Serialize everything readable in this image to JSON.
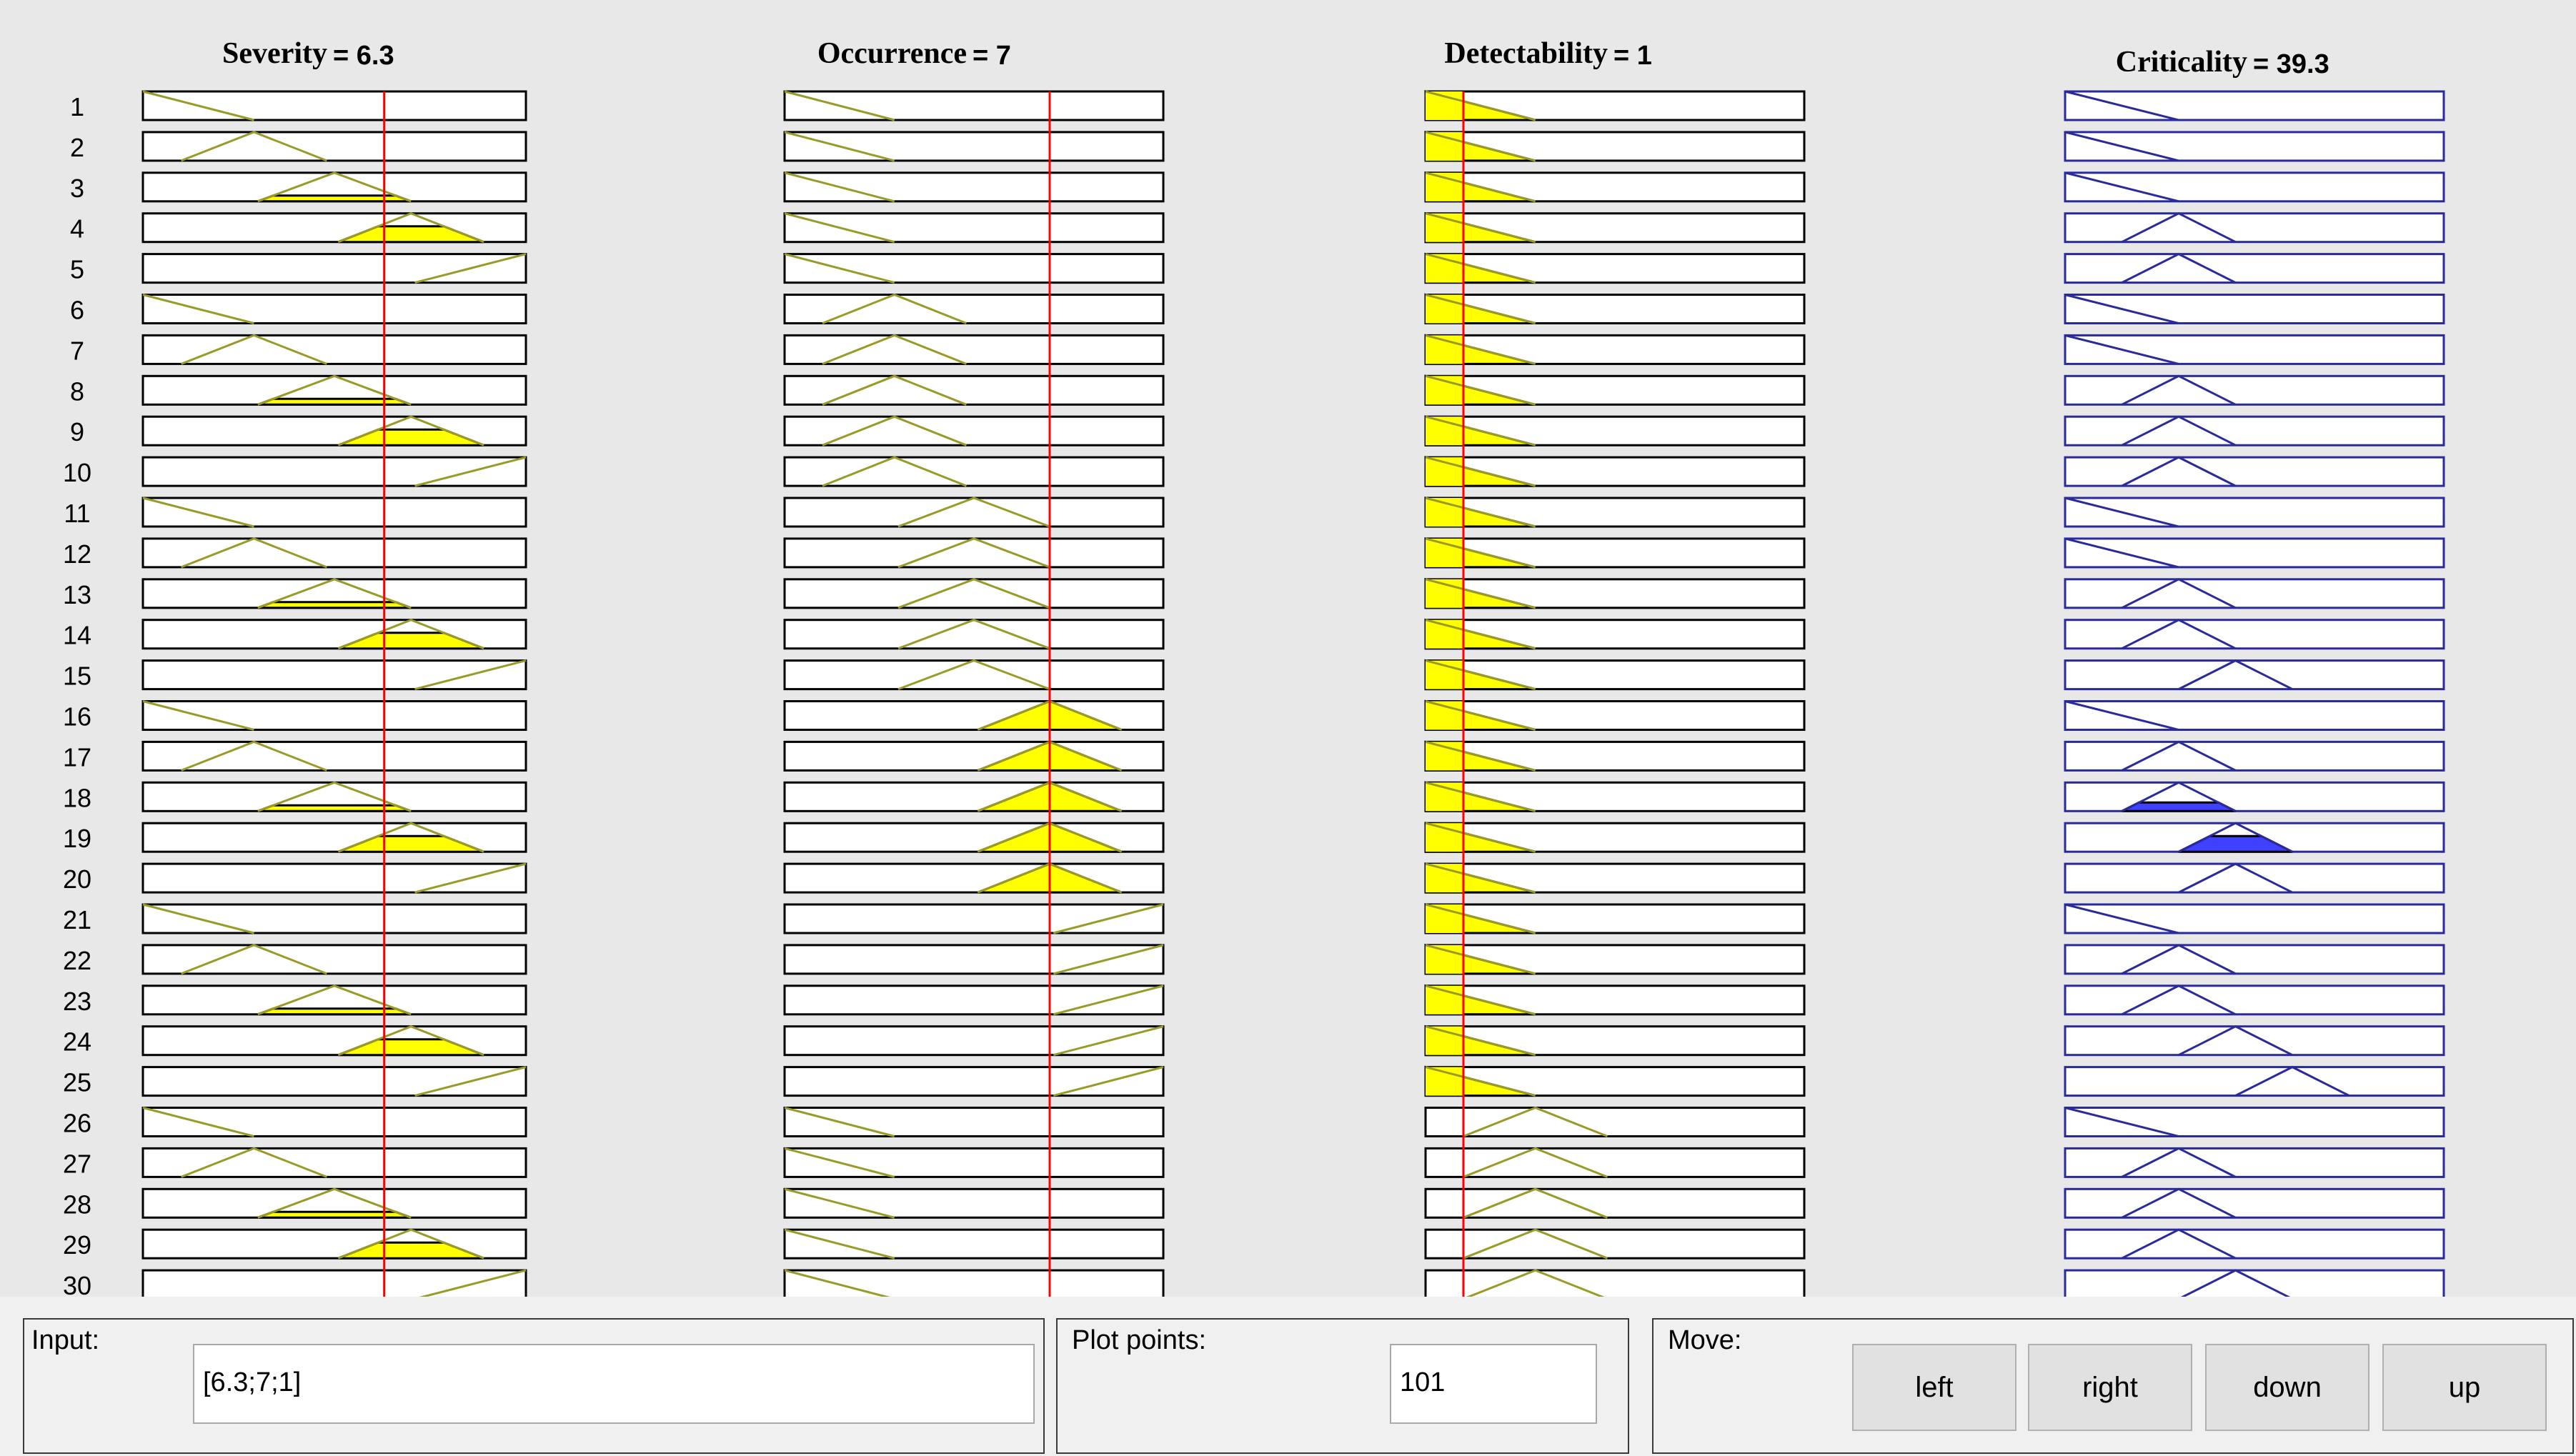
{
  "inputs": [
    {
      "name": "Severity",
      "value_label": "= 6.3"
    },
    {
      "name": "Occurrence",
      "value_label": "= 7"
    },
    {
      "name": "Detectability",
      "value_label": "= 1"
    }
  ],
  "output": {
    "name": "Criticality",
    "value_label": "= 39.3"
  },
  "rows": [
    "1",
    "2",
    "3",
    "4",
    "5",
    "6",
    "7",
    "8",
    "9",
    "10",
    "11",
    "12",
    "13",
    "14",
    "15",
    "16",
    "17",
    "18",
    "19",
    "20",
    "21",
    "22",
    "23",
    "24",
    "25",
    "26",
    "27",
    "28",
    "29",
    "30"
  ],
  "rule_mf": {
    "severity": [
      "VL",
      "L",
      "M",
      "H",
      "VH",
      "VL",
      "L",
      "M",
      "H",
      "VH",
      "VL",
      "L",
      "M",
      "H",
      "VH",
      "VL",
      "L",
      "M",
      "H",
      "VH",
      "VL",
      "L",
      "M",
      "H",
      "VH",
      "VL",
      "L",
      "M",
      "H",
      "VH"
    ],
    "occurrence": [
      "VL",
      "VL",
      "VL",
      "VL",
      "VL",
      "L",
      "L",
      "L",
      "L",
      "L",
      "M",
      "M",
      "M",
      "M",
      "M",
      "H",
      "H",
      "H",
      "H",
      "H",
      "VH",
      "VH",
      "VH",
      "VH",
      "VH",
      "VL",
      "VL",
      "VL",
      "VL",
      "VL"
    ],
    "detectability": [
      "VL",
      "VL",
      "VL",
      "VL",
      "VL",
      "VL",
      "VL",
      "VL",
      "VL",
      "VL",
      "VL",
      "VL",
      "VL",
      "VL",
      "VL",
      "VL",
      "VL",
      "VL",
      "VL",
      "VL",
      "VL",
      "VL",
      "VL",
      "VL",
      "VL",
      "L",
      "L",
      "L",
      "L",
      "L"
    ],
    "criticality": [
      "VL",
      "VL",
      "VL",
      "L",
      "L",
      "VL",
      "VL",
      "L",
      "L",
      "L",
      "VL",
      "VL",
      "L",
      "L",
      "M",
      "VL",
      "L",
      "L",
      "M",
      "M",
      "VL",
      "L",
      "L",
      "M",
      "H",
      "VL",
      "L",
      "L",
      "L",
      "M"
    ]
  },
  "rule_fire": [
    0,
    0,
    0.2,
    0.55,
    0,
    0,
    0,
    0.2,
    0.55,
    0,
    0,
    0,
    0.2,
    0.55,
    0,
    0,
    0,
    0.3,
    0.55,
    0,
    0,
    0,
    0.2,
    0.55,
    0,
    0,
    0,
    0.2,
    0.55,
    0
  ],
  "markers": {
    "severity": 6.3,
    "occurrence": 7,
    "detectability": 1
  },
  "colors": {
    "input_mf": "#9a9a28",
    "input_fill": "#ffff00",
    "output_mf": "#2a2a9a",
    "output_fill": "#4040ff",
    "marker": "#ff0000"
  },
  "input_panel": {
    "label": "Input:",
    "value": "[6.3;7;1]"
  },
  "plot_panel": {
    "label": "Plot points:",
    "value": "101"
  },
  "move_panel": {
    "label": "Move:",
    "buttons": [
      "left",
      "right",
      "down",
      "up"
    ]
  }
}
